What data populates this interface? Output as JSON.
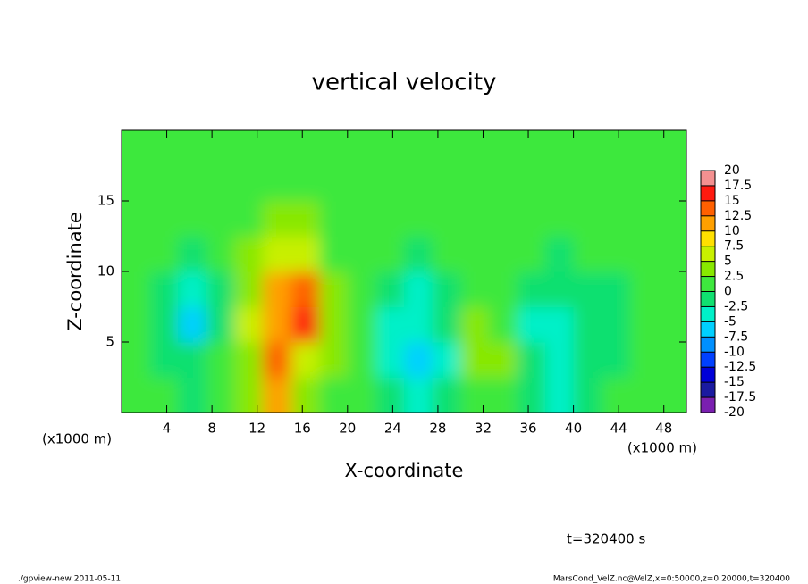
{
  "chart_data": {
    "type": "heatmap",
    "title": "vertical velocity",
    "x_label": "X-coordinate",
    "y_label": "Z-coordinate",
    "x_unit": "(x1000 m)",
    "y_unit": "(x1000 m)",
    "time_label": "t=320400 s",
    "footer_left": "./gpview-new  2011-05-11",
    "footer_right": "MarsCond_VelZ.nc@VelZ,x=0:50000,z=0:20000,t=320400",
    "xlim": [
      0,
      50
    ],
    "ylim": [
      0,
      20
    ],
    "xticks": [
      4,
      8,
      12,
      16,
      20,
      24,
      28,
      32,
      36,
      40,
      44,
      48
    ],
    "yticks": [
      5,
      10,
      15
    ],
    "x": [
      1.25,
      3.75,
      6.25,
      8.75,
      11.25,
      13.75,
      16.25,
      18.75,
      21.25,
      23.75,
      26.25,
      28.75,
      31.25,
      33.75,
      36.25,
      38.75,
      41.25,
      43.75,
      46.25,
      48.75
    ],
    "y": [
      1.25,
      3.75,
      6.25,
      8.75,
      11.25,
      13.75,
      16.25,
      18.75
    ],
    "values": [
      [
        1,
        0,
        -1,
        1,
        3,
        12,
        3,
        1,
        1,
        -1,
        -3,
        -2,
        2,
        1,
        -1,
        -3,
        -1,
        0,
        1,
        1
      ],
      [
        0,
        -1,
        -2,
        1,
        4,
        13,
        6,
        3,
        1,
        -4,
        -6,
        -3,
        4,
        3,
        -2,
        -4,
        -2,
        -1,
        0,
        1
      ],
      [
        0,
        -2,
        -6,
        -1,
        5,
        11,
        15,
        4,
        1,
        -5,
        -5,
        -2,
        3,
        2,
        -3,
        -3,
        -2,
        -1,
        0,
        0
      ],
      [
        0,
        -1,
        -3,
        -1,
        4,
        12,
        13,
        3,
        1,
        -2,
        -3,
        -1,
        1,
        1,
        -1,
        -2,
        -1,
        -1,
        0,
        0
      ],
      [
        0,
        0,
        -1,
        0,
        3,
        6,
        5,
        2,
        1,
        0,
        -1,
        0,
        1,
        1,
        0,
        -1,
        0,
        0,
        0,
        0
      ],
      [
        1,
        0,
        0,
        1,
        2,
        3,
        3,
        2,
        1,
        1,
        0,
        1,
        1,
        1,
        0,
        0,
        0,
        1,
        0,
        0
      ],
      [
        1,
        0,
        0,
        1,
        1,
        2,
        2,
        2,
        1,
        1,
        0,
        1,
        1,
        1,
        1,
        0,
        0,
        0,
        0,
        0
      ],
      [
        0,
        0,
        0,
        0,
        1,
        1,
        1,
        1,
        1,
        0,
        0,
        0,
        0,
        0,
        0,
        0,
        0,
        0,
        0,
        0
      ]
    ],
    "levels": [
      -20,
      -17.5,
      -15,
      -12.5,
      -10,
      -7.5,
      -5,
      -2.5,
      0,
      2.5,
      5,
      7.5,
      10,
      12.5,
      15,
      17.5,
      20
    ],
    "colors": [
      "#7a1fb0",
      "#1a1aa0",
      "#0000d8",
      "#0040ff",
      "#0090ff",
      "#00d0ff",
      "#00f0c8",
      "#10e070",
      "#3ee83e",
      "#88e800",
      "#c8f000",
      "#ffe000",
      "#ffa000",
      "#ff6000",
      "#ff1a10",
      "#f49090"
    ]
  }
}
